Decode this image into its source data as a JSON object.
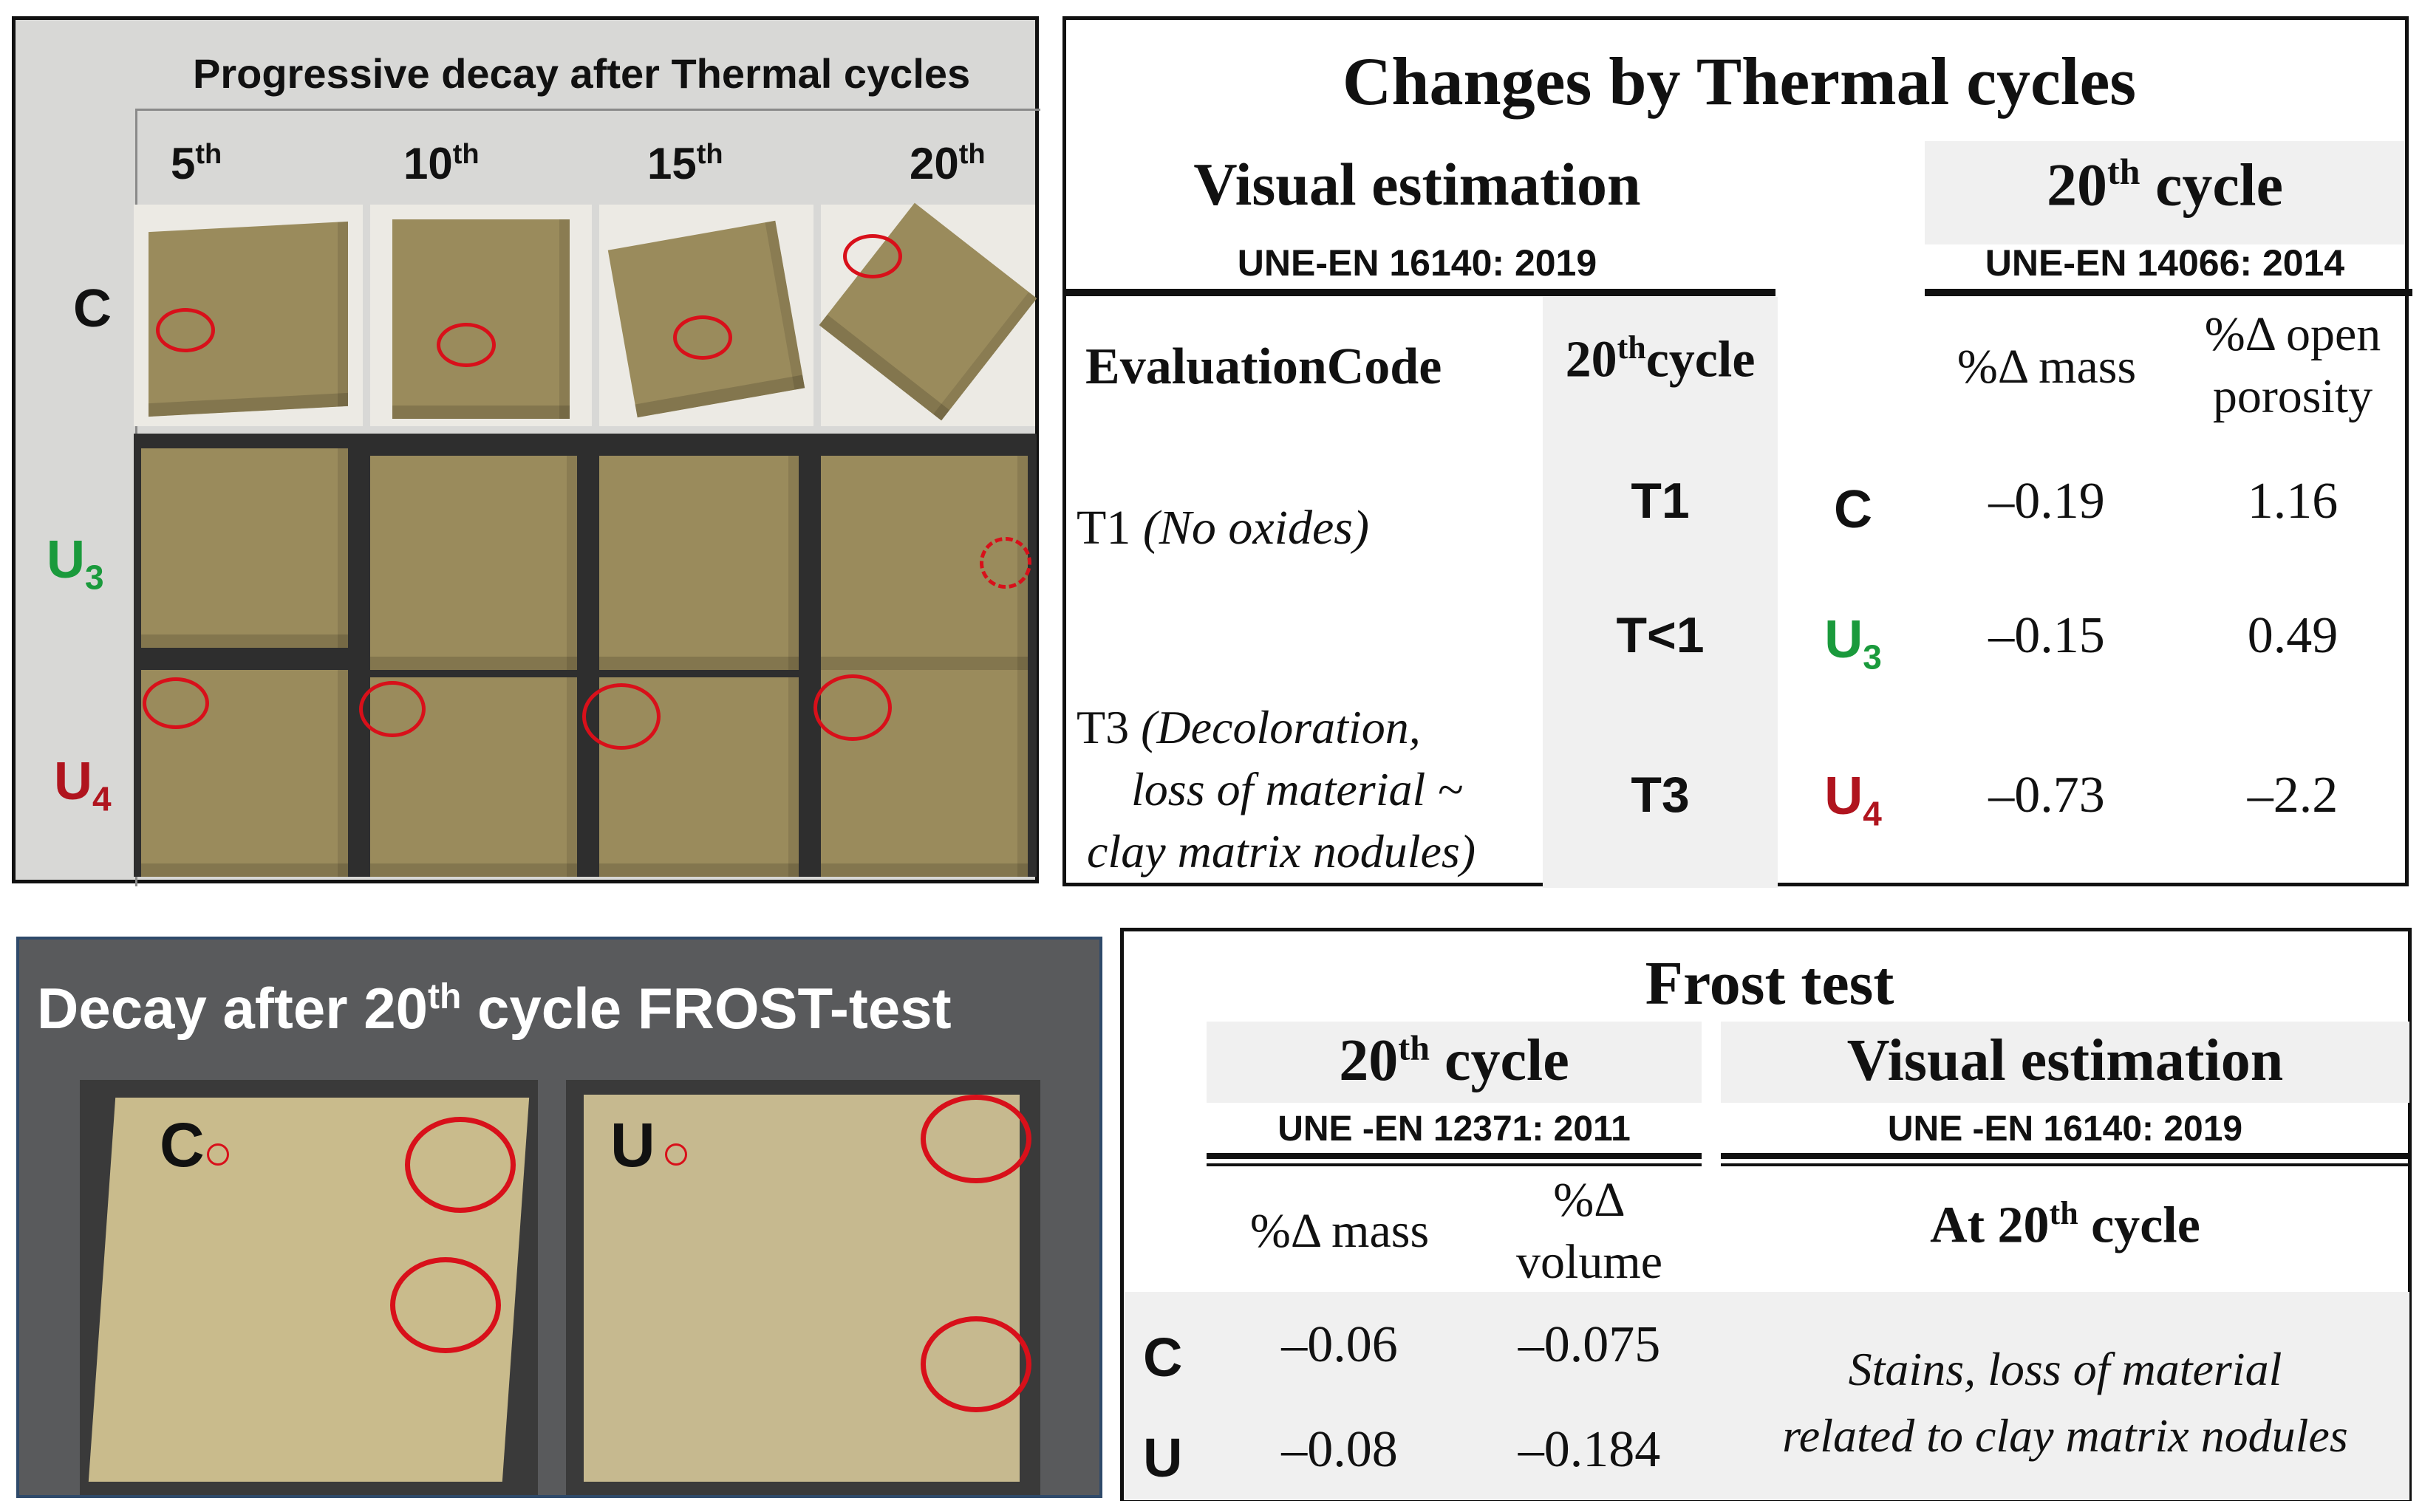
{
  "thermal_photos": {
    "title": "Progressive decay after Thermal cycles",
    "columns": [
      {
        "num": "5",
        "sup": "th"
      },
      {
        "num": "10",
        "sup": "th"
      },
      {
        "num": "15",
        "sup": "th"
      },
      {
        "num": "20",
        "sup": "th"
      }
    ],
    "rows": [
      {
        "label": "C",
        "sub": ""
      },
      {
        "label": "U",
        "sub": "3"
      },
      {
        "label": "U",
        "sub": "4"
      }
    ]
  },
  "thermal_table": {
    "title": "Changes by Thermal cycles",
    "visual_heading": "Visual estimation",
    "visual_standard": "UNE-EN 16140: 2019",
    "cycle_heading_num": "20",
    "cycle_heading_sup": "th",
    "cycle_heading_rest": " cycle",
    "cycle_standard": "UNE-EN 14066: 2014",
    "col_eval": "EvaluationCode",
    "col_cycle_num": "20",
    "col_cycle_sup": "th",
    "col_cycle_rest": "cycle",
    "col_mass": "%Δ mass",
    "col_porosity_1": "%Δ open",
    "col_porosity_2": "porosity",
    "code_t1_main": "T1",
    "code_t1_note": "(No oxides)",
    "code_t3_main": "T3",
    "code_t3_note_1": "(Decoloration,",
    "code_t3_note_2": "loss of material ~",
    "code_t3_note_3": "clay  matrix nodules)",
    "rows": [
      {
        "cycle": "T1",
        "label": "C",
        "sub": "",
        "mass": "–0.19",
        "porosity": "1.16"
      },
      {
        "cycle": "T<1",
        "label": "U",
        "sub": "3",
        "mass": "–0.15",
        "porosity": "0.49"
      },
      {
        "cycle": "T3",
        "label": "U",
        "sub": "4",
        "mass": "–0.73",
        "porosity": "–2.2"
      }
    ]
  },
  "frost_photos": {
    "title_a": "Decay  after 20",
    "title_sup": "th",
    "title_b": " cycle  FROST-test",
    "label_c": "C",
    "label_u": "U"
  },
  "frost_table": {
    "title": "Frost  test",
    "cycle_heading_num": "20",
    "cycle_heading_sup": "th",
    "cycle_heading_rest": " cycle",
    "cycle_standard": "UNE -EN 12371: 2011",
    "visual_heading": "Visual  estimation",
    "visual_standard": "UNE -EN 16140: 2019",
    "col_mass": "%Δ mass",
    "col_volume_1": "%Δ",
    "col_volume_2": "volume",
    "col_at_a": "At 20",
    "col_at_sup": "th",
    "col_at_b": " cycle",
    "rows": [
      {
        "label": "C",
        "mass": "–0.06",
        "volume": "–0.075"
      },
      {
        "label": "U",
        "mass": "–0.08",
        "volume": "–0.184"
      }
    ],
    "note_1": "Stains, loss of material",
    "note_2": "related  to clay matrix nodules"
  },
  "colors": {
    "green_label": "#1a9a3c",
    "red_label": "#b0141e",
    "circle_marker": "#d8101a"
  }
}
